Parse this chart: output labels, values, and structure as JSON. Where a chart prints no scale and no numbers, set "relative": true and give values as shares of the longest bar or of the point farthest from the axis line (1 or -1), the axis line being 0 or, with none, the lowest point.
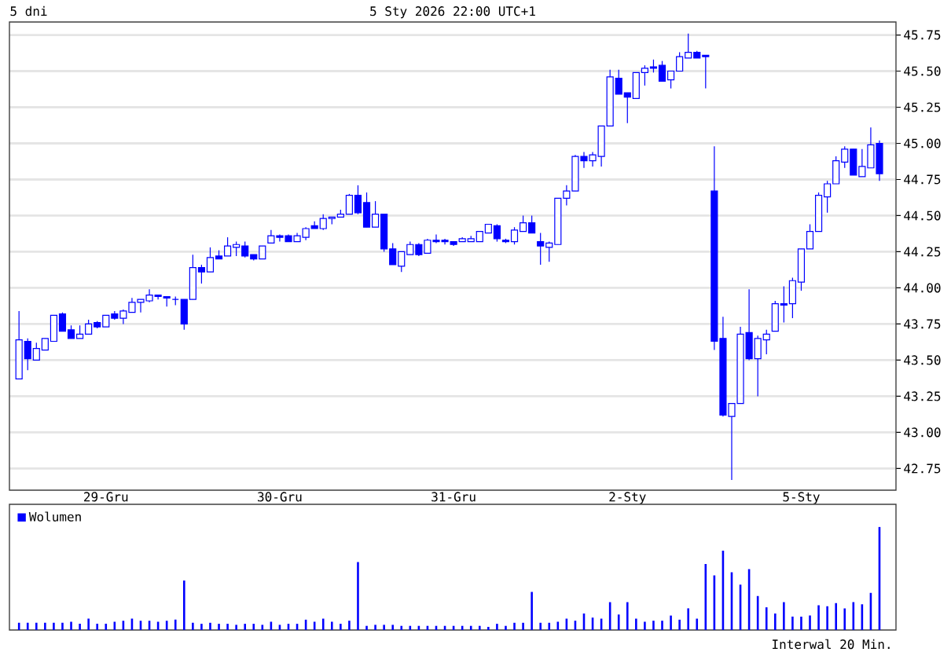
{
  "chart_data": [
    {
      "type": "candlestick",
      "title": "5 dni",
      "subtitle": "5 Sty 2026 22:00 UTC+1",
      "categories": [
        null,
        null,
        null,
        null,
        null,
        null,
        null,
        null,
        null,
        null,
        "29-Gru",
        null,
        null,
        null,
        null,
        null,
        null,
        null,
        null,
        null,
        null,
        null,
        null,
        null,
        null,
        null,
        null,
        null,
        null,
        null,
        "30-Gru",
        null,
        null,
        null,
        null,
        null,
        null,
        null,
        null,
        null,
        null,
        null,
        null,
        null,
        null,
        null,
        null,
        null,
        null,
        null,
        "31-Gru",
        null,
        null,
        null,
        null,
        null,
        null,
        null,
        null,
        null,
        null,
        null,
        null,
        null,
        null,
        null,
        null,
        null,
        null,
        null,
        "2-Sty",
        null,
        null,
        null,
        null,
        null,
        null,
        null,
        null,
        null,
        null,
        null,
        null,
        null,
        null,
        null,
        null,
        null,
        null,
        null,
        "5-Sty",
        null,
        null,
        null,
        null,
        null,
        null,
        null,
        null,
        null
      ],
      "ohlc": [
        [
          43.37,
          43.84,
          43.37,
          43.64
        ],
        [
          43.63,
          43.65,
          43.43,
          43.51
        ],
        [
          43.5,
          43.62,
          43.5,
          43.58
        ],
        [
          43.57,
          43.65,
          43.57,
          43.65
        ],
        [
          43.63,
          43.81,
          43.63,
          43.81
        ],
        [
          43.82,
          43.83,
          43.7,
          43.7
        ],
        [
          43.71,
          43.74,
          43.65,
          43.65
        ],
        [
          43.65,
          43.74,
          43.65,
          43.68
        ],
        [
          43.68,
          43.78,
          43.68,
          43.75
        ],
        [
          43.76,
          43.77,
          43.72,
          43.73
        ],
        [
          43.73,
          43.81,
          43.73,
          43.81
        ],
        [
          43.82,
          43.84,
          43.78,
          43.79
        ],
        [
          43.79,
          43.85,
          43.75,
          43.84
        ],
        [
          43.83,
          43.93,
          43.83,
          43.9
        ],
        [
          43.9,
          43.92,
          43.83,
          43.92
        ],
        [
          43.91,
          43.99,
          43.9,
          43.95
        ],
        [
          43.95,
          43.95,
          43.92,
          43.94
        ],
        [
          43.94,
          43.94,
          43.87,
          43.93
        ],
        [
          43.92,
          43.94,
          43.88,
          43.92
        ],
        [
          43.92,
          43.92,
          43.71,
          43.75
        ],
        [
          43.92,
          44.23,
          43.92,
          44.14
        ],
        [
          44.14,
          44.16,
          44.03,
          44.11
        ],
        [
          44.11,
          44.28,
          44.11,
          44.21
        ],
        [
          44.22,
          44.26,
          44.2,
          44.2
        ],
        [
          44.22,
          44.35,
          44.22,
          44.29
        ],
        [
          44.28,
          44.32,
          44.22,
          44.3
        ],
        [
          44.29,
          44.32,
          44.21,
          44.22
        ],
        [
          44.23,
          44.23,
          44.19,
          44.2
        ],
        [
          44.2,
          44.29,
          44.2,
          44.29
        ],
        [
          44.31,
          44.4,
          44.31,
          44.36
        ],
        [
          44.36,
          44.37,
          44.32,
          44.35
        ],
        [
          44.36,
          44.37,
          44.32,
          44.32
        ],
        [
          44.32,
          44.38,
          44.32,
          44.36
        ],
        [
          44.35,
          44.42,
          44.33,
          44.41
        ],
        [
          44.43,
          44.46,
          44.41,
          44.41
        ],
        [
          44.41,
          44.51,
          44.4,
          44.48
        ],
        [
          44.48,
          44.49,
          44.44,
          44.49
        ],
        [
          44.49,
          44.54,
          44.49,
          44.51
        ],
        [
          44.51,
          44.65,
          44.51,
          44.64
        ],
        [
          44.64,
          44.71,
          44.51,
          44.52
        ],
        [
          44.59,
          44.66,
          44.42,
          44.42
        ],
        [
          44.42,
          44.6,
          44.42,
          44.51
        ],
        [
          44.51,
          44.51,
          44.25,
          44.27
        ],
        [
          44.27,
          44.31,
          44.16,
          44.16
        ],
        [
          44.15,
          44.25,
          44.11,
          44.25
        ],
        [
          44.23,
          44.32,
          44.23,
          44.3
        ],
        [
          44.3,
          44.31,
          44.22,
          44.23
        ],
        [
          44.24,
          44.34,
          44.24,
          44.33
        ],
        [
          44.33,
          44.37,
          44.31,
          44.32
        ],
        [
          44.33,
          44.34,
          44.3,
          44.32
        ],
        [
          44.32,
          44.32,
          44.29,
          44.3
        ],
        [
          44.32,
          44.35,
          44.32,
          44.34
        ],
        [
          44.32,
          44.36,
          44.32,
          44.34
        ],
        [
          44.32,
          44.39,
          44.32,
          44.39
        ],
        [
          44.38,
          44.44,
          44.38,
          44.44
        ],
        [
          44.43,
          44.44,
          44.32,
          44.34
        ],
        [
          44.33,
          44.34,
          44.31,
          44.32
        ],
        [
          44.32,
          44.42,
          44.3,
          44.4
        ],
        [
          44.39,
          44.5,
          44.39,
          44.45
        ],
        [
          44.45,
          44.5,
          44.38,
          44.38
        ],
        [
          44.32,
          44.38,
          44.16,
          44.29
        ],
        [
          44.28,
          44.32,
          44.18,
          44.31
        ],
        [
          44.3,
          44.62,
          44.3,
          44.62
        ],
        [
          44.62,
          44.71,
          44.57,
          44.67
        ],
        [
          44.67,
          44.92,
          44.67,
          44.91
        ],
        [
          44.91,
          44.94,
          44.83,
          44.88
        ],
        [
          44.88,
          44.94,
          44.84,
          44.92
        ],
        [
          44.91,
          45.12,
          44.84,
          45.12
        ],
        [
          45.12,
          45.51,
          45.12,
          45.46
        ],
        [
          45.45,
          45.51,
          45.34,
          45.34
        ],
        [
          45.35,
          45.35,
          45.14,
          45.32
        ],
        [
          45.31,
          45.49,
          45.31,
          45.49
        ],
        [
          45.49,
          45.54,
          45.4,
          45.52
        ],
        [
          45.53,
          45.58,
          45.49,
          45.52
        ],
        [
          45.54,
          45.57,
          45.43,
          45.43
        ],
        [
          45.44,
          45.5,
          45.38,
          45.5
        ],
        [
          45.5,
          45.63,
          45.5,
          45.6
        ],
        [
          45.59,
          45.76,
          45.59,
          45.63
        ],
        [
          45.63,
          45.64,
          45.59,
          45.59
        ],
        [
          45.61,
          45.61,
          45.38,
          45.6
        ],
        [
          44.67,
          44.98,
          43.57,
          43.63
        ],
        [
          43.65,
          43.8,
          43.11,
          43.12
        ],
        [
          43.11,
          43.2,
          42.67,
          43.2
        ],
        [
          43.2,
          43.73,
          43.2,
          43.68
        ],
        [
          43.69,
          43.99,
          43.5,
          43.51
        ],
        [
          43.51,
          43.67,
          43.25,
          43.65
        ],
        [
          43.64,
          43.71,
          43.54,
          43.68
        ],
        [
          43.7,
          43.91,
          43.7,
          43.89
        ],
        [
          43.89,
          44.01,
          43.76,
          43.88
        ],
        [
          43.89,
          44.07,
          43.79,
          44.05
        ],
        [
          44.04,
          44.27,
          43.98,
          44.27
        ],
        [
          44.27,
          44.44,
          44.27,
          44.39
        ],
        [
          44.39,
          44.66,
          44.39,
          44.64
        ],
        [
          44.63,
          44.74,
          44.52,
          44.72
        ],
        [
          44.72,
          44.91,
          44.72,
          44.88
        ],
        [
          44.87,
          44.98,
          44.83,
          44.96
        ],
        [
          44.96,
          44.96,
          44.78,
          44.78
        ],
        [
          44.77,
          44.96,
          44.77,
          44.84
        ],
        [
          44.83,
          45.11,
          44.83,
          44.99
        ],
        [
          45.0,
          45.02,
          44.74,
          44.79
        ]
      ],
      "color": "#0000ff",
      "ylim": [
        42.6,
        45.84
      ],
      "yticks": [
        45.75,
        {
          "value": 45.5,
          "label": "45.50"
        },
        45.25,
        {
          "value": 45,
          "label": "45.00"
        },
        44.75,
        {
          "value": 44.5,
          "label": "44.50"
        },
        44.25,
        {
          "value": 44,
          "label": "44.00"
        },
        43.75,
        {
          "value": 43.5,
          "label": "43.50"
        },
        43.25,
        {
          "value": 43,
          "label": "43.00"
        },
        42.75
      ],
      "grid": "y"
    },
    {
      "type": "bar",
      "relative": true,
      "legend": "top left",
      "annotations": [
        "Interwal 20 Min."
      ],
      "categories": [
        null,
        null,
        null,
        null,
        null,
        null,
        null,
        null,
        null,
        null,
        null,
        null,
        null,
        null,
        null,
        null,
        null,
        null,
        null,
        null,
        null,
        null,
        null,
        null,
        null,
        null,
        null,
        null,
        null,
        null,
        null,
        null,
        null,
        null,
        null,
        null,
        null,
        null,
        null,
        null,
        null,
        null,
        null,
        null,
        null,
        null,
        null,
        null,
        null,
        null,
        null,
        null,
        null,
        null,
        null,
        null,
        null,
        null,
        null,
        null,
        null,
        null,
        null,
        null,
        null,
        null,
        null,
        null,
        null,
        null,
        null,
        null,
        null,
        null,
        null,
        null,
        null,
        null,
        null,
        null,
        null,
        null,
        null,
        null,
        null,
        null,
        null,
        null,
        null,
        null,
        null,
        null,
        null,
        null,
        null,
        null,
        null,
        null,
        null,
        null
      ],
      "series": [
        {
          "name": "Wolumen",
          "color": "#0000ff",
          "values": [
            0.07,
            0.07,
            0.07,
            0.07,
            0.07,
            0.07,
            0.08,
            0.06,
            0.11,
            0.06,
            0.06,
            0.08,
            0.09,
            0.11,
            0.09,
            0.09,
            0.08,
            0.09,
            0.1,
            0.48,
            0.07,
            0.06,
            0.07,
            0.06,
            0.06,
            0.05,
            0.06,
            0.06,
            0.05,
            0.08,
            0.05,
            0.06,
            0.06,
            0.1,
            0.08,
            0.11,
            0.08,
            0.06,
            0.09,
            0.66,
            0.04,
            0.05,
            0.05,
            0.05,
            0.04,
            0.04,
            0.04,
            0.04,
            0.04,
            0.04,
            0.04,
            0.04,
            0.04,
            0.04,
            0.03,
            0.06,
            0.04,
            0.07,
            0.07,
            0.37,
            0.07,
            0.07,
            0.08,
            0.11,
            0.09,
            0.16,
            0.12,
            0.11,
            0.27,
            0.15,
            0.27,
            0.11,
            0.08,
            0.09,
            0.09,
            0.14,
            0.1,
            0.21,
            0.11,
            0.64,
            0.53,
            0.77,
            0.56,
            0.44,
            0.59,
            0.33,
            0.22,
            0.16,
            0.27,
            0.13,
            0.13,
            0.14,
            0.24,
            0.23,
            0.26,
            0.21,
            0.27,
            0.25,
            0.36,
            1
          ]
        }
      ]
    }
  ]
}
